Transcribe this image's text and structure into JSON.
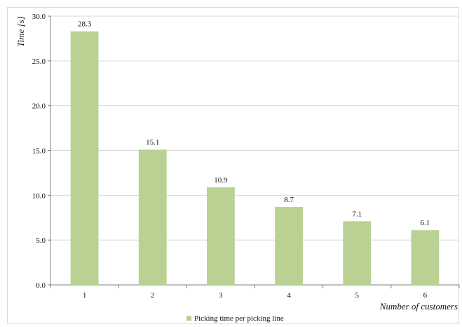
{
  "chart_data": {
    "type": "bar",
    "categories": [
      "1",
      "2",
      "3",
      "4",
      "5",
      "6"
    ],
    "series": [
      {
        "name": "Picking time per picking line",
        "values": [
          28.3,
          15.1,
          10.9,
          8.7,
          7.1,
          6.1
        ],
        "data_labels": [
          "28.3",
          "15.1",
          "10.9",
          "8.7",
          "7.1",
          "6.1"
        ],
        "color": "#b9d293"
      }
    ],
    "xlabel": "Number of customers",
    "ylabel": "Time [s]",
    "ylim": [
      0,
      30
    ],
    "yticks": [
      0,
      5,
      10,
      15,
      20,
      25,
      30
    ],
    "ytick_labels": [
      "0.0",
      "5.0",
      "10.0",
      "15.0",
      "20.0",
      "25.0",
      "30.0"
    ],
    "grid": true,
    "legend": "bottom-center",
    "colors": {
      "bar": "#b9d293",
      "grid": "#d9d9d9",
      "axis": "#7f7f7f"
    }
  }
}
